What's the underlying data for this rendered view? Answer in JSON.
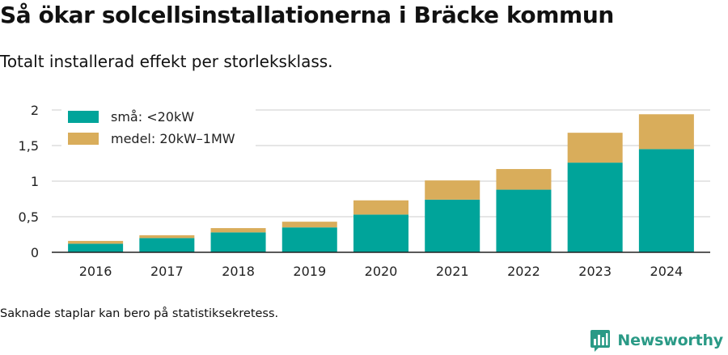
{
  "header": {
    "title": "Så ökar solcellsinstallationerna i Bräcke kommun",
    "subtitle": "Totalt installerad effekt per storleksklass."
  },
  "footer": {
    "note": "Saknade staplar kan bero på statistiksekretess.",
    "brand": "Newsworthy"
  },
  "chart_data": {
    "type": "bar",
    "stacked": true,
    "categories": [
      "2016",
      "2017",
      "2018",
      "2019",
      "2020",
      "2021",
      "2022",
      "2023",
      "2024"
    ],
    "series": [
      {
        "name": "små: <20kW",
        "color": "#00a49a",
        "values": [
          0.12,
          0.2,
          0.28,
          0.35,
          0.53,
          0.74,
          0.88,
          1.26,
          1.45
        ]
      },
      {
        "name": "medel: 20kW–1MW",
        "color": "#d9ad5b",
        "values": [
          0.04,
          0.04,
          0.06,
          0.08,
          0.2,
          0.27,
          0.29,
          0.42,
          0.49
        ]
      }
    ],
    "yticks": [
      "0",
      "0,5",
      "1",
      "1,5",
      "2"
    ],
    "ylim": [
      0,
      2
    ],
    "grid": true,
    "legend": "top-left"
  }
}
